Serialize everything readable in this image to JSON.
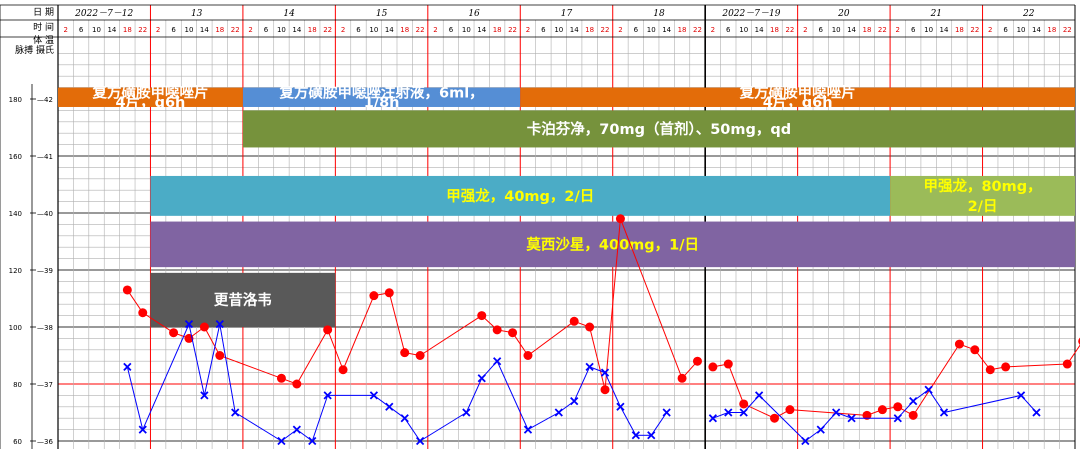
{
  "header": {
    "row_labels": [
      "日 期",
      "时 间",
      "体 温"
    ],
    "pulse_temp_label": "脉搏 摄氏",
    "dates": [
      "2022－7－12",
      "13",
      "14",
      "15",
      "16",
      "17",
      "18",
      "2022－7－19",
      "20",
      "21",
      "22"
    ],
    "hours": [
      "2",
      "6",
      "10",
      "14",
      "18",
      "22"
    ],
    "red_hours": [
      "2",
      "18",
      "22"
    ]
  },
  "axes": {
    "pulse_ticks": [
      "180",
      "160",
      "140",
      "120",
      "100",
      "80",
      "60"
    ],
    "temp_ticks": [
      "42",
      "41",
      "40",
      "39",
      "38",
      "37",
      "36"
    ]
  },
  "medications": [
    {
      "lines": [
        "复方磺胺甲噁唑片",
        "4片，q6h"
      ],
      "color": "#e36c09",
      "text_color": "#ffffff",
      "start_day": 0,
      "start_slot": 0,
      "end_day": 1,
      "end_slot": 6,
      "row_top": 42.2,
      "row_bottom": 41.86
    },
    {
      "lines": [
        "复方磺胺甲噁唑注射液，6ml，",
        "1/8h"
      ],
      "color": "#558ed5",
      "text_color": "#ffffff",
      "start_day": 2,
      "start_slot": 0,
      "end_day": 5,
      "end_slot": 0,
      "row_top": 42.2,
      "row_bottom": 41.86
    },
    {
      "lines": [
        "复方磺胺甲噁唑片",
        "4片，q6h"
      ],
      "color": "#e36c09",
      "text_color": "#ffffff",
      "start_day": 5,
      "start_slot": 0,
      "end_day": 11,
      "end_slot": 0,
      "row_top": 42.2,
      "row_bottom": 41.86
    },
    {
      "lines": [
        "卡泊芬净，70mg（首剂）、50mg，qd"
      ],
      "color": "#76923c",
      "text_color": "#ffffff",
      "start_day": 2,
      "start_slot": 0,
      "end_day": 11,
      "end_slot": 0,
      "row_top": 41.8,
      "row_bottom": 41.15
    },
    {
      "lines": [
        "甲强龙，40mg，2/日"
      ],
      "color": "#4bacc6",
      "text_color": "#ffff00",
      "start_day": 1,
      "start_slot": 0,
      "end_day": 8,
      "end_slot": 6,
      "row_top": 40.65,
      "row_bottom": 39.95
    },
    {
      "lines": [
        "甲强龙，80mg，",
        "2/日"
      ],
      "color": "#9bbb59",
      "text_color": "#ffff00",
      "start_day": 9,
      "start_slot": 0,
      "end_day": 11,
      "end_slot": 0,
      "row_top": 40.65,
      "row_bottom": 39.95
    },
    {
      "lines": [
        "莫西沙星，400mg，1/日"
      ],
      "color": "#8064a2",
      "text_color": "#ffff00",
      "start_day": 1,
      "start_slot": 0,
      "end_day": 11,
      "end_slot": 0,
      "row_top": 39.85,
      "row_bottom": 39.05
    },
    {
      "lines": [
        "更昔洛韦"
      ],
      "color": "#595959",
      "text_color": "#ffffff",
      "start_day": 1,
      "start_slot": 0,
      "end_day": 3,
      "end_slot": 0,
      "row_top": 38.95,
      "row_bottom": 38.0
    }
  ],
  "chart_data": {
    "type": "line",
    "x_unit": "day index with 4-hour slots (2,6,10,14,18,22)",
    "y_axes": {
      "temperature_C": {
        "min": 36,
        "max": 42.2
      },
      "pulse_bpm": {
        "min": 60,
        "max": 184
      }
    },
    "series": [
      {
        "name": "体温",
        "axis": "temperature_C",
        "color": "#ff0000",
        "marker": "dot",
        "points": [
          {
            "day": 0,
            "slot": 4,
            "y": 38.65
          },
          {
            "day": 0,
            "slot": 5,
            "y": 38.25
          },
          {
            "day": 1,
            "slot": 1,
            "y": 37.9
          },
          {
            "day": 1,
            "slot": 2,
            "y": 37.8
          },
          {
            "day": 1,
            "slot": 3,
            "y": 38.0
          },
          {
            "day": 1,
            "slot": 4,
            "y": 37.5
          },
          {
            "day": 2,
            "slot": 2,
            "y": 37.1
          },
          {
            "day": 2,
            "slot": 3,
            "y": 37.0
          },
          {
            "day": 2,
            "slot": 5,
            "y": 37.95
          },
          {
            "day": 3,
            "slot": 0,
            "y": 37.25
          },
          {
            "day": 3,
            "slot": 2,
            "y": 38.55
          },
          {
            "day": 3,
            "slot": 3,
            "y": 38.6
          },
          {
            "day": 3,
            "slot": 4,
            "y": 37.55
          },
          {
            "day": 3,
            "slot": 5,
            "y": 37.5
          },
          {
            "day": 4,
            "slot": 3,
            "y": 38.2
          },
          {
            "day": 4,
            "slot": 4,
            "y": 37.95
          },
          {
            "day": 4,
            "slot": 5,
            "y": 37.9
          },
          {
            "day": 5,
            "slot": 0,
            "y": 37.5
          },
          {
            "day": 5,
            "slot": 3,
            "y": 38.1
          },
          {
            "day": 5,
            "slot": 4,
            "y": 38.0
          },
          {
            "day": 5,
            "slot": 5,
            "y": 36.9
          },
          {
            "day": 6,
            "slot": 0,
            "y": 39.9
          },
          {
            "day": 6,
            "slot": 4,
            "y": 37.1
          },
          {
            "day": 6,
            "slot": 5,
            "y": 37.4
          },
          {
            "day": 7,
            "slot": 0,
            "y": 37.3
          },
          {
            "day": 7,
            "slot": 1,
            "y": 37.35
          },
          {
            "day": 7,
            "slot": 2,
            "y": 36.65
          },
          {
            "day": 7,
            "slot": 4,
            "y": 36.4
          },
          {
            "day": 7,
            "slot": 5,
            "y": 36.55
          },
          {
            "day": 8,
            "slot": 4,
            "y": 36.45
          },
          {
            "day": 8,
            "slot": 5,
            "y": 36.55
          },
          {
            "day": 9,
            "slot": 0,
            "y": 36.6
          },
          {
            "day": 9,
            "slot": 1,
            "y": 36.45
          },
          {
            "day": 9,
            "slot": 4,
            "y": 37.7
          },
          {
            "day": 9,
            "slot": 5,
            "y": 37.6
          },
          {
            "day": 10,
            "slot": 0,
            "y": 37.25
          },
          {
            "day": 10,
            "slot": 1,
            "y": 37.3
          },
          {
            "day": 10,
            "slot": 5,
            "y": 37.35
          },
          {
            "day": 11,
            "slot": 0,
            "y": 37.75
          }
        ]
      },
      {
        "name": "脉搏",
        "axis": "pulse_bpm",
        "color": "#0000ff",
        "marker": "x",
        "points": [
          {
            "day": 0,
            "slot": 4,
            "y": 86
          },
          {
            "day": 0,
            "slot": 5,
            "y": 64
          },
          {
            "day": 1,
            "slot": 2,
            "y": 101
          },
          {
            "day": 1,
            "slot": 3,
            "y": 76
          },
          {
            "day": 1,
            "slot": 4,
            "y": 101
          },
          {
            "day": 1,
            "slot": 5,
            "y": 70
          },
          {
            "day": 2,
            "slot": 2,
            "y": 60
          },
          {
            "day": 2,
            "slot": 3,
            "y": 64
          },
          {
            "day": 2,
            "slot": 4,
            "y": 60
          },
          {
            "day": 2,
            "slot": 5,
            "y": 76
          },
          {
            "day": 3,
            "slot": 2,
            "y": 76
          },
          {
            "day": 3,
            "slot": 3,
            "y": 72
          },
          {
            "day": 3,
            "slot": 4,
            "y": 68
          },
          {
            "day": 3,
            "slot": 5,
            "y": 60
          },
          {
            "day": 4,
            "slot": 2,
            "y": 70
          },
          {
            "day": 4,
            "slot": 3,
            "y": 82
          },
          {
            "day": 4,
            "slot": 4,
            "y": 88
          },
          {
            "day": 5,
            "slot": 0,
            "y": 64
          },
          {
            "day": 5,
            "slot": 2,
            "y": 70
          },
          {
            "day": 5,
            "slot": 3,
            "y": 74
          },
          {
            "day": 5,
            "slot": 4,
            "y": 86
          },
          {
            "day": 5,
            "slot": 5,
            "y": 84
          },
          {
            "day": 6,
            "slot": 0,
            "y": 72
          },
          {
            "day": 6,
            "slot": 1,
            "y": 62
          },
          {
            "day": 6,
            "slot": 2,
            "y": 62
          },
          {
            "day": 6,
            "slot": 3,
            "y": 70
          },
          {
            "day": 7,
            "slot": 0,
            "y": 68
          },
          {
            "day": 7,
            "slot": 1,
            "y": 70
          },
          {
            "day": 7,
            "slot": 2,
            "y": 70
          },
          {
            "day": 7,
            "slot": 3,
            "y": 76
          },
          {
            "day": 8,
            "slot": 0,
            "y": 60
          },
          {
            "day": 8,
            "slot": 1,
            "y": 64
          },
          {
            "day": 8,
            "slot": 2,
            "y": 70
          },
          {
            "day": 8,
            "slot": 3,
            "y": 68
          },
          {
            "day": 9,
            "slot": 0,
            "y": 68
          },
          {
            "day": 9,
            "slot": 1,
            "y": 74
          },
          {
            "day": 9,
            "slot": 2,
            "y": 78
          },
          {
            "day": 9,
            "slot": 3,
            "y": 70
          },
          {
            "day": 10,
            "slot": 2,
            "y": 76
          },
          {
            "day": 10,
            "slot": 3,
            "y": 70
          }
        ]
      }
    ]
  }
}
